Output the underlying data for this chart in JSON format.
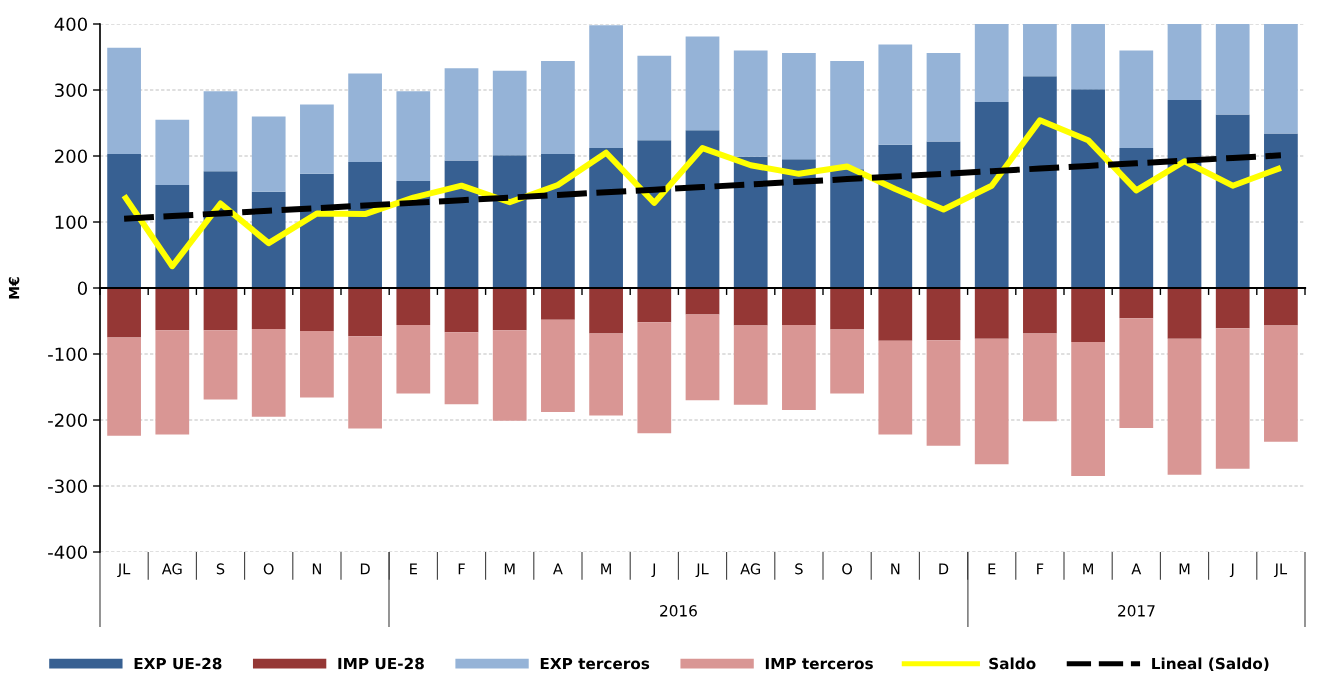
{
  "chart_data": {
    "type": "bar",
    "stacked": true,
    "categories": [
      "JL",
      "AG",
      "S",
      "O",
      "N",
      "D",
      "E",
      "F",
      "M",
      "A",
      "M",
      "J",
      "JL",
      "AG",
      "S",
      "O",
      "N",
      "D",
      "E",
      "F",
      "M",
      "A",
      "M",
      "J",
      "JL"
    ],
    "series": [
      {
        "name": "EXP UE-28",
        "color": "#376092",
        "values": [
          203,
          156,
          177,
          146,
          173,
          191,
          162,
          193,
          201,
          203,
          212,
          224,
          239,
          199,
          195,
          180,
          217,
          222,
          282,
          321,
          301,
          212,
          285,
          263,
          234
        ]
      },
      {
        "name": "IMP UE-28",
        "color": "#953735",
        "values": [
          -75,
          -64,
          -64,
          -62,
          -65,
          -73,
          -56,
          -67,
          -64,
          -48,
          -69,
          -52,
          -40,
          -57,
          -56,
          -63,
          -80,
          -79,
          -77,
          -69,
          -82,
          -46,
          -77,
          -61,
          -57
        ]
      },
      {
        "name": "EXP terceros",
        "color": "#95b3d7",
        "values": [
          161,
          99,
          121,
          114,
          105,
          134,
          136,
          140,
          128,
          141,
          186,
          128,
          142,
          161,
          161,
          164,
          152,
          134,
          118,
          79,
          99,
          148,
          115,
          137,
          166
        ]
      },
      {
        "name": "IMP terceros",
        "color": "#d99694",
        "values": [
          -149,
          -158,
          -105,
          -133,
          -101,
          -140,
          -104,
          -109,
          -137,
          -140,
          -124,
          -168,
          -130,
          -120,
          -129,
          -97,
          -142,
          -160,
          -190,
          -133,
          -203,
          -166,
          -206,
          -213,
          -176
        ]
      },
      {
        "name": "Saldo",
        "type": "line",
        "color": "#ffff00",
        "values": [
          140,
          33,
          128,
          68,
          113,
          112,
          137,
          155,
          130,
          156,
          205,
          129,
          212,
          186,
          173,
          184,
          150,
          119,
          155,
          254,
          224,
          148,
          192,
          155,
          182
        ]
      },
      {
        "name": "Lineal (Saldo)",
        "type": "line",
        "line_style": "dashed",
        "color": "#000000",
        "values": [
          105,
          109,
          113,
          117,
          121,
          125,
          129,
          133,
          137,
          141,
          145,
          149,
          153,
          157,
          161,
          165,
          169,
          173,
          177,
          181,
          185,
          189,
          193,
          197,
          201
        ]
      }
    ],
    "ylabel": "M€",
    "ylim": [
      -400,
      400
    ],
    "yticks": [
      -400,
      -300,
      -200,
      -100,
      0,
      100,
      200,
      300,
      400
    ],
    "x2lim": [
      2014.737,
      2017.368
    ],
    "x2ticks": [
      {
        "value": 2014.737,
        "label": null
      },
      {
        "value": 2015.368,
        "label": null
      },
      2016,
      {
        "value": 2016.632,
        "label": null
      },
      2017,
      {
        "value": 2017.368,
        "label": null
      }
    ],
    "grid": "y",
    "legend": "bottom"
  }
}
